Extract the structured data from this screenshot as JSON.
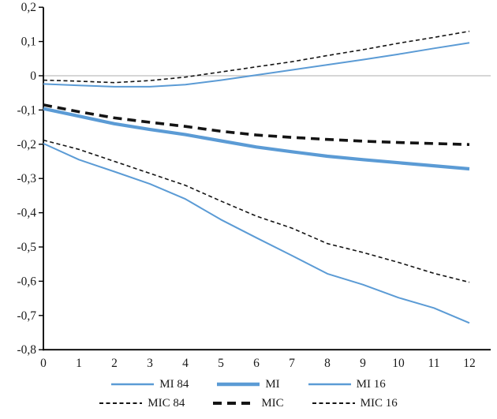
{
  "chart_data": {
    "type": "line",
    "title": "",
    "xlabel": "",
    "ylabel": "",
    "x": [
      0,
      1,
      2,
      3,
      4,
      5,
      6,
      7,
      8,
      9,
      10,
      11,
      12
    ],
    "xtick_labels": [
      "0",
      "1",
      "2",
      "3",
      "4",
      "5",
      "6",
      "7",
      "8",
      "9",
      "10",
      "11",
      "12"
    ],
    "ylim": [
      -0.8,
      0.2
    ],
    "yticks": [
      0.2,
      0.1,
      0,
      -0.1,
      -0.2,
      -0.3,
      -0.4,
      -0.5,
      -0.6,
      -0.7,
      -0.8
    ],
    "ytick_labels": [
      "0,2",
      "0,1",
      "0",
      "-0,1",
      "-0,2",
      "-0,3",
      "-0,4",
      "-0,5",
      "-0,6",
      "-0,7",
      "-0,8"
    ],
    "grid": "horizontal zero line only",
    "zero_line_color": "#C9C9C9",
    "axis_color": "#000000",
    "legend_position": "bottom",
    "series": [
      {
        "name": "MI 84",
        "color": "#5B9BD5",
        "width": 2,
        "dash": "",
        "values": [
          -0.024,
          -0.028,
          -0.032,
          -0.032,
          -0.026,
          -0.013,
          0.002,
          0.017,
          0.032,
          0.047,
          0.063,
          0.08,
          0.096
        ]
      },
      {
        "name": "MI",
        "color": "#5B9BD5",
        "width": 4.2,
        "dash": "",
        "values": [
          -0.096,
          -0.118,
          -0.14,
          -0.157,
          -0.172,
          -0.19,
          -0.208,
          -0.222,
          -0.235,
          -0.245,
          -0.254,
          -0.263,
          -0.272
        ]
      },
      {
        "name": "MI 16",
        "color": "#5B9BD5",
        "width": 2,
        "dash": "",
        "values": [
          -0.198,
          -0.245,
          -0.28,
          -0.316,
          -0.36,
          -0.42,
          -0.473,
          -0.525,
          -0.578,
          -0.61,
          -0.648,
          -0.678,
          -0.722
        ]
      },
      {
        "name": "MIC 84",
        "color": "#141414",
        "width": 1.6,
        "dash": "5 3.5",
        "values": [
          -0.013,
          -0.016,
          -0.02,
          -0.014,
          -0.004,
          0.011,
          0.026,
          0.041,
          0.059,
          0.076,
          0.095,
          0.112,
          0.13
        ]
      },
      {
        "name": "MIC",
        "color": "#141414",
        "width": 3.6,
        "dash": "11 7",
        "values": [
          -0.085,
          -0.105,
          -0.123,
          -0.136,
          -0.148,
          -0.162,
          -0.173,
          -0.18,
          -0.186,
          -0.191,
          -0.195,
          -0.198,
          -0.201
        ]
      },
      {
        "name": "MIC 16",
        "color": "#141414",
        "width": 1.6,
        "dash": "5 3.5",
        "values": [
          -0.188,
          -0.215,
          -0.25,
          -0.285,
          -0.32,
          -0.366,
          -0.41,
          -0.445,
          -0.49,
          -0.516,
          -0.545,
          -0.577,
          -0.603
        ]
      }
    ]
  },
  "legend": {
    "rows": [
      [
        "MI 84",
        "MI",
        "MI 16"
      ],
      [
        "MIC 84",
        "MIC",
        "MIC 16"
      ]
    ]
  }
}
